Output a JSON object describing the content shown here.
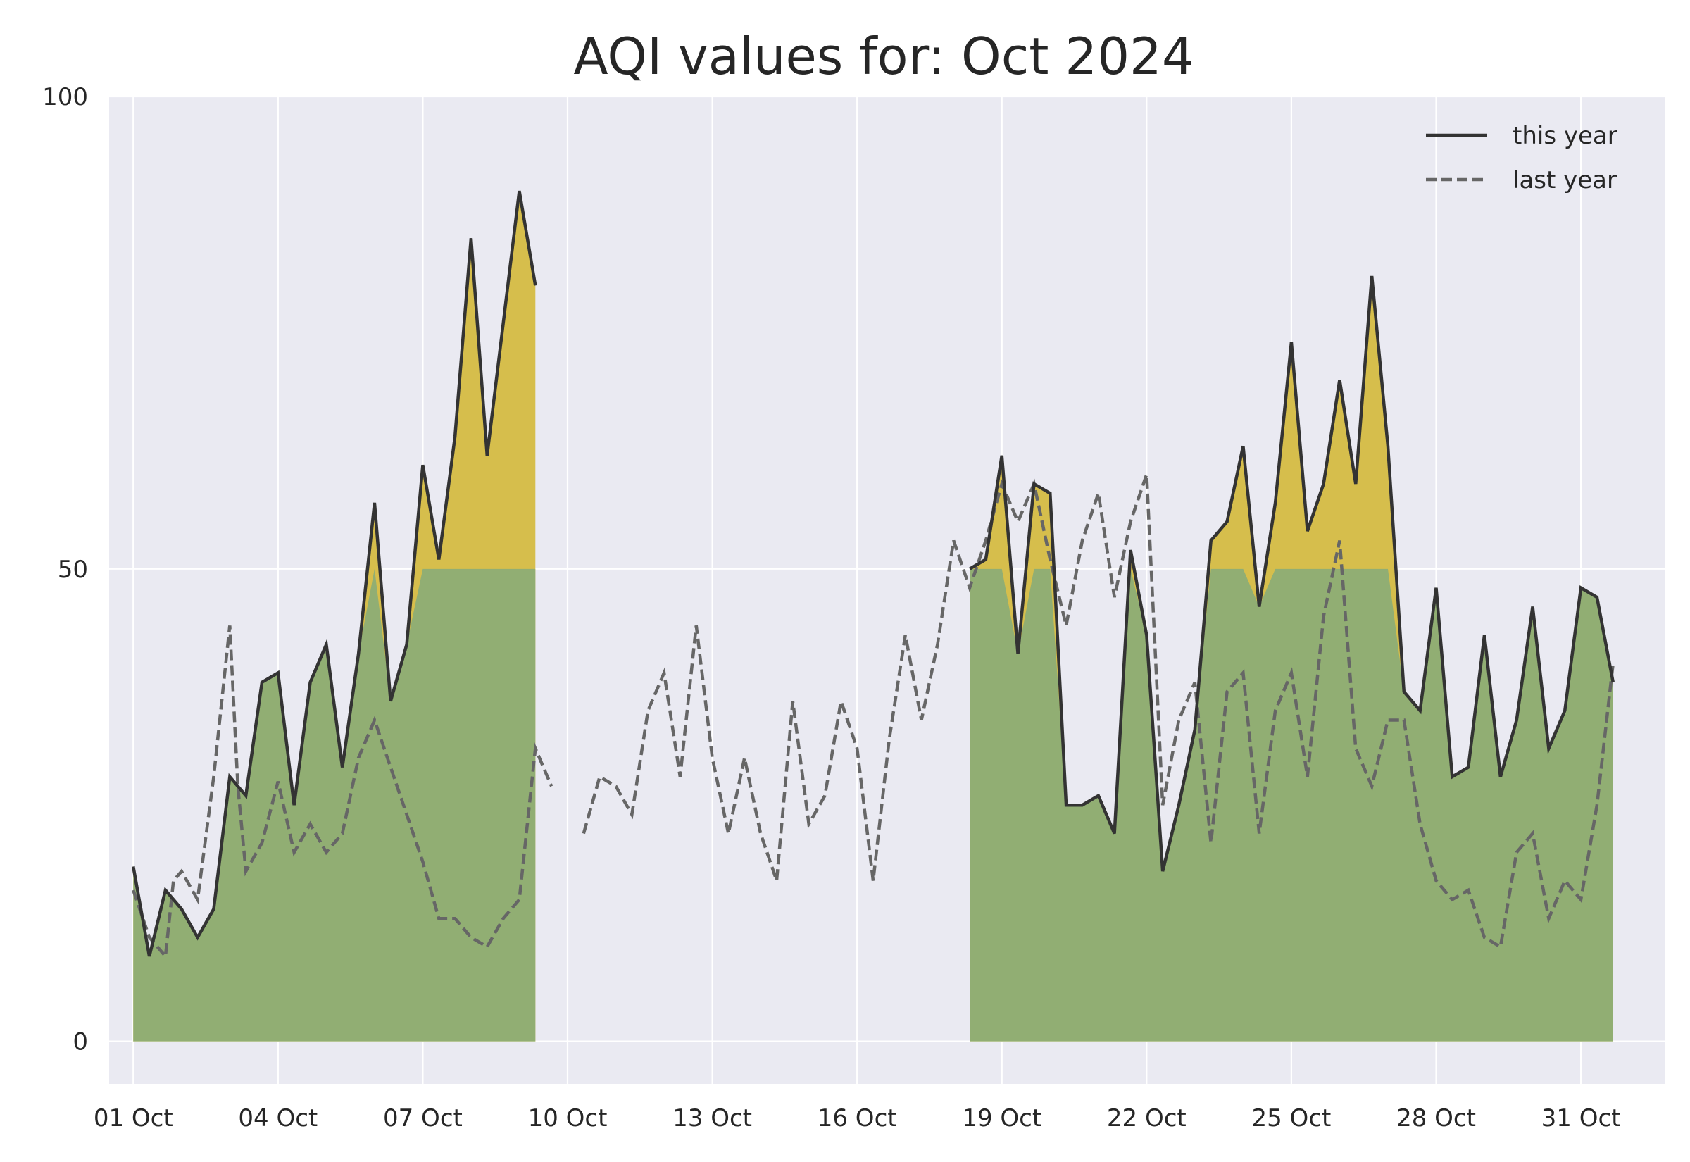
{
  "chart_data": {
    "type": "line",
    "title": "AQI values for: Oct 2024",
    "xlabel": "",
    "ylabel": "",
    "ylim": [
      -4.5,
      100
    ],
    "xlim": [
      0.5,
      32.75
    ],
    "grid": true,
    "legend_position": "top-right",
    "x_ticks": [
      {
        "value": 1,
        "label": "01 Oct"
      },
      {
        "value": 4,
        "label": "04 Oct"
      },
      {
        "value": 7,
        "label": "07 Oct"
      },
      {
        "value": 10,
        "label": "10 Oct"
      },
      {
        "value": 13,
        "label": "13 Oct"
      },
      {
        "value": 16,
        "label": "16 Oct"
      },
      {
        "value": 19,
        "label": "19 Oct"
      },
      {
        "value": 22,
        "label": "22 Oct"
      },
      {
        "value": 25,
        "label": "25 Oct"
      },
      {
        "value": 28,
        "label": "28 Oct"
      },
      {
        "value": 31,
        "label": "31 Oct"
      }
    ],
    "y_ticks": [
      {
        "value": 0,
        "label": "0"
      },
      {
        "value": 50,
        "label": "50"
      },
      {
        "value": 100,
        "label": "100"
      }
    ],
    "threshold": 50,
    "colors": {
      "background": "#eaeaf2",
      "grid": "#ffffff",
      "good_fill": "#91ae73",
      "moderate_fill": "#d6be4c",
      "this_year": "#333333",
      "last_year": "#666666"
    },
    "series": [
      {
        "name": "this year",
        "style": "solid",
        "points": [
          [
            1.0,
            18.5
          ],
          [
            1.333,
            9.0
          ],
          [
            1.667,
            16.0
          ],
          [
            2.0,
            14.0
          ],
          [
            2.333,
            11.0
          ],
          [
            2.667,
            14.0
          ],
          [
            3.0,
            28.0
          ],
          [
            3.333,
            26.0
          ],
          [
            3.667,
            38.0
          ],
          [
            4.0,
            39.0
          ],
          [
            4.333,
            25.0
          ],
          [
            4.667,
            38.0
          ],
          [
            5.0,
            42.0
          ],
          [
            5.333,
            29.0
          ],
          [
            5.667,
            41.0
          ],
          [
            6.0,
            57.0
          ],
          [
            6.333,
            36.0
          ],
          [
            6.667,
            42.0
          ],
          [
            7.0,
            61.0
          ],
          [
            7.333,
            51.0
          ],
          [
            7.667,
            64.0
          ],
          [
            8.0,
            85.0
          ],
          [
            8.333,
            62.0
          ],
          [
            8.667,
            76.0
          ],
          [
            9.0,
            90.0
          ],
          [
            9.333,
            80.0
          ],
          [
            null,
            null
          ],
          [
            18.333,
            50.0
          ],
          [
            18.667,
            51.0
          ],
          [
            19.0,
            62.0
          ],
          [
            19.333,
            41.0
          ],
          [
            19.667,
            59.0
          ],
          [
            20.0,
            58.0
          ],
          [
            20.333,
            25.0
          ],
          [
            20.667,
            25.0
          ],
          [
            21.0,
            26.0
          ],
          [
            21.333,
            22.0
          ],
          [
            21.667,
            52.0
          ],
          [
            22.0,
            43.0
          ],
          [
            22.333,
            18.0
          ],
          [
            22.667,
            25.0
          ],
          [
            23.0,
            33.0
          ],
          [
            23.333,
            53.0
          ],
          [
            23.667,
            55.0
          ],
          [
            24.0,
            63.0
          ],
          [
            24.333,
            46.0
          ],
          [
            24.667,
            57.0
          ],
          [
            25.0,
            74.0
          ],
          [
            25.333,
            54.0
          ],
          [
            25.667,
            59.0
          ],
          [
            26.0,
            70.0
          ],
          [
            26.333,
            59.0
          ],
          [
            26.667,
            81.0
          ],
          [
            27.0,
            63.0
          ],
          [
            27.333,
            37.0
          ],
          [
            27.667,
            35.0
          ],
          [
            28.0,
            48.0
          ],
          [
            28.333,
            28.0
          ],
          [
            28.667,
            29.0
          ],
          [
            29.0,
            43.0
          ],
          [
            29.333,
            28.0
          ],
          [
            29.667,
            34.0
          ],
          [
            30.0,
            46.0
          ],
          [
            30.333,
            31.0
          ],
          [
            30.667,
            35.0
          ],
          [
            31.0,
            48.0
          ],
          [
            31.333,
            47.0
          ],
          [
            31.667,
            38.0
          ]
        ]
      },
      {
        "name": "last year",
        "style": "dashed",
        "points": [
          [
            1.0,
            16.0
          ],
          [
            1.333,
            11.0
          ],
          [
            1.667,
            9.0
          ],
          [
            1.833,
            17.0
          ],
          [
            2.0,
            18.0
          ],
          [
            2.333,
            15.0
          ],
          [
            2.667,
            28.0
          ],
          [
            3.0,
            44.0
          ],
          [
            3.167,
            27.0
          ],
          [
            3.333,
            18.0
          ],
          [
            3.667,
            21.0
          ],
          [
            4.0,
            27.5
          ],
          [
            4.333,
            20.0
          ],
          [
            4.667,
            23.0
          ],
          [
            5.0,
            20.0
          ],
          [
            5.333,
            22.0
          ],
          [
            5.667,
            30.0
          ],
          [
            6.0,
            34.0
          ],
          [
            6.333,
            29.0
          ],
          [
            6.667,
            24.0
          ],
          [
            7.0,
            19.0
          ],
          [
            7.333,
            13.0
          ],
          [
            7.667,
            13.0
          ],
          [
            8.0,
            11.0
          ],
          [
            8.333,
            10.0
          ],
          [
            8.667,
            13.0
          ],
          [
            9.0,
            15.0
          ],
          [
            9.333,
            31.0
          ],
          [
            9.667,
            27.0
          ],
          [
            null,
            null
          ],
          [
            10.333,
            22.0
          ],
          [
            10.667,
            28.0
          ],
          [
            11.0,
            27.0
          ],
          [
            11.333,
            24.0
          ],
          [
            11.667,
            35.0
          ],
          [
            12.0,
            39.0
          ],
          [
            12.333,
            28.0
          ],
          [
            12.667,
            44.0
          ],
          [
            13.0,
            30.0
          ],
          [
            13.333,
            22.0
          ],
          [
            13.667,
            30.0
          ],
          [
            14.0,
            22.0
          ],
          [
            14.333,
            17.0
          ],
          [
            14.667,
            36.0
          ],
          [
            15.0,
            23.0
          ],
          [
            15.333,
            26.0
          ],
          [
            15.667,
            36.0
          ],
          [
            16.0,
            31.0
          ],
          [
            16.333,
            17.0
          ],
          [
            16.667,
            32.0
          ],
          [
            17.0,
            43.0
          ],
          [
            17.333,
            34.0
          ],
          [
            17.667,
            42.0
          ],
          [
            18.0,
            53.0
          ],
          [
            18.333,
            48.0
          ],
          [
            18.667,
            53.0
          ],
          [
            19.0,
            59.0
          ],
          [
            19.333,
            55.0
          ],
          [
            19.667,
            59.0
          ],
          [
            20.0,
            51.0
          ],
          [
            20.333,
            44.0
          ],
          [
            20.667,
            53.0
          ],
          [
            21.0,
            58.0
          ],
          [
            21.333,
            47.0
          ],
          [
            21.667,
            55.0
          ],
          [
            22.0,
            60.0
          ],
          [
            22.333,
            25.0
          ],
          [
            22.667,
            34.0
          ],
          [
            23.0,
            38.0
          ],
          [
            23.333,
            21.0
          ],
          [
            23.667,
            37.0
          ],
          [
            24.0,
            39.0
          ],
          [
            24.333,
            22.0
          ],
          [
            24.667,
            35.0
          ],
          [
            25.0,
            39.0
          ],
          [
            25.333,
            28.0
          ],
          [
            25.667,
            45.0
          ],
          [
            26.0,
            53.0
          ],
          [
            26.333,
            31.0
          ],
          [
            26.667,
            27.0
          ],
          [
            27.0,
            34.0
          ],
          [
            27.333,
            34.0
          ],
          [
            27.667,
            23.0
          ],
          [
            28.0,
            17.0
          ],
          [
            28.333,
            15.0
          ],
          [
            28.667,
            16.0
          ],
          [
            29.0,
            11.0
          ],
          [
            29.333,
            10.0
          ],
          [
            29.667,
            20.0
          ],
          [
            30.0,
            22.0
          ],
          [
            30.333,
            13.0
          ],
          [
            30.667,
            17.0
          ],
          [
            31.0,
            15.0
          ],
          [
            31.333,
            25.0
          ],
          [
            31.667,
            40.0
          ]
        ]
      }
    ]
  }
}
